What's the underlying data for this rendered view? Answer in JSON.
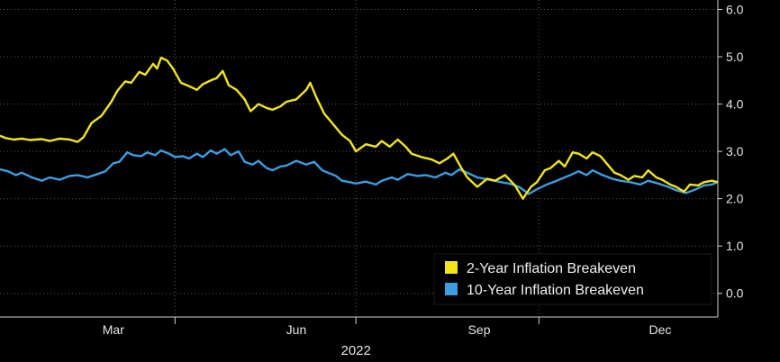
{
  "chart_data": {
    "type": "line",
    "title": "",
    "xlabel": "2022",
    "ylabel": "",
    "x_range": [
      "2022-01-03",
      "2022-12-30"
    ],
    "ylim": [
      -0.5,
      6.2
    ],
    "grid": true,
    "legend_position": "bottom-right",
    "axis_side": "right",
    "x_ticks": [
      {
        "date": "2022-03-01",
        "label": "Mar"
      },
      {
        "date": "2022-06-01",
        "label": "Jun"
      },
      {
        "date": "2022-09-01",
        "label": "Sep"
      },
      {
        "date": "2022-12-01",
        "label": "Dec"
      }
    ],
    "y_ticks": [
      {
        "value": 0,
        "label": "0.0"
      },
      {
        "value": 1,
        "label": "1.0"
      },
      {
        "value": 2,
        "label": "2.0"
      },
      {
        "value": 3,
        "label": "3.0"
      },
      {
        "value": 4,
        "label": "4.0"
      },
      {
        "value": 5,
        "label": "5.0"
      },
      {
        "value": 6,
        "label": "6.0"
      }
    ],
    "x_gridlines": [
      "2022-01-01",
      "2022-04-01",
      "2022-07-01",
      "2022-10-01"
    ],
    "series": [
      {
        "name": "2-Year Inflation Breakeven",
        "color": "#f2e619",
        "points": [
          [
            "2022-01-03",
            3.33
          ],
          [
            "2022-01-06",
            3.28
          ],
          [
            "2022-01-10",
            3.25
          ],
          [
            "2022-01-14",
            3.27
          ],
          [
            "2022-01-18",
            3.24
          ],
          [
            "2022-01-24",
            3.26
          ],
          [
            "2022-01-28",
            3.22
          ],
          [
            "2022-02-02",
            3.27
          ],
          [
            "2022-02-07",
            3.25
          ],
          [
            "2022-02-11",
            3.2
          ],
          [
            "2022-02-14",
            3.3
          ],
          [
            "2022-02-18",
            3.6
          ],
          [
            "2022-02-23",
            3.75
          ],
          [
            "2022-02-28",
            4.05
          ],
          [
            "2022-03-03",
            4.28
          ],
          [
            "2022-03-07",
            4.48
          ],
          [
            "2022-03-10",
            4.45
          ],
          [
            "2022-03-14",
            4.68
          ],
          [
            "2022-03-17",
            4.62
          ],
          [
            "2022-03-21",
            4.85
          ],
          [
            "2022-03-23",
            4.75
          ],
          [
            "2022-03-25",
            4.98
          ],
          [
            "2022-03-28",
            4.92
          ],
          [
            "2022-03-31",
            4.75
          ],
          [
            "2022-04-04",
            4.45
          ],
          [
            "2022-04-08",
            4.38
          ],
          [
            "2022-04-12",
            4.3
          ],
          [
            "2022-04-15",
            4.42
          ],
          [
            "2022-04-19",
            4.5
          ],
          [
            "2022-04-22",
            4.55
          ],
          [
            "2022-04-25",
            4.7
          ],
          [
            "2022-04-28",
            4.4
          ],
          [
            "2022-05-02",
            4.3
          ],
          [
            "2022-05-06",
            4.1
          ],
          [
            "2022-05-09",
            3.85
          ],
          [
            "2022-05-13",
            4.0
          ],
          [
            "2022-05-17",
            3.92
          ],
          [
            "2022-05-20",
            3.88
          ],
          [
            "2022-05-24",
            3.95
          ],
          [
            "2022-05-27",
            4.05
          ],
          [
            "2022-06-01",
            4.1
          ],
          [
            "2022-06-06",
            4.3
          ],
          [
            "2022-06-08",
            4.45
          ],
          [
            "2022-06-11",
            4.15
          ],
          [
            "2022-06-15",
            3.8
          ],
          [
            "2022-06-20",
            3.55
          ],
          [
            "2022-06-24",
            3.35
          ],
          [
            "2022-06-28",
            3.22
          ],
          [
            "2022-07-01",
            3.0
          ],
          [
            "2022-07-06",
            3.15
          ],
          [
            "2022-07-11",
            3.1
          ],
          [
            "2022-07-14",
            3.22
          ],
          [
            "2022-07-18",
            3.1
          ],
          [
            "2022-07-22",
            3.25
          ],
          [
            "2022-07-26",
            3.1
          ],
          [
            "2022-07-29",
            2.95
          ],
          [
            "2022-08-03",
            2.88
          ],
          [
            "2022-08-08",
            2.83
          ],
          [
            "2022-08-12",
            2.75
          ],
          [
            "2022-08-16",
            2.85
          ],
          [
            "2022-08-19",
            2.95
          ],
          [
            "2022-08-23",
            2.65
          ],
          [
            "2022-08-26",
            2.45
          ],
          [
            "2022-08-31",
            2.25
          ],
          [
            "2022-09-05",
            2.42
          ],
          [
            "2022-09-09",
            2.38
          ],
          [
            "2022-09-14",
            2.5
          ],
          [
            "2022-09-19",
            2.28
          ],
          [
            "2022-09-23",
            2.0
          ],
          [
            "2022-09-27",
            2.25
          ],
          [
            "2022-09-30",
            2.35
          ],
          [
            "2022-10-04",
            2.6
          ],
          [
            "2022-10-07",
            2.65
          ],
          [
            "2022-10-11",
            2.8
          ],
          [
            "2022-10-14",
            2.68
          ],
          [
            "2022-10-18",
            2.98
          ],
          [
            "2022-10-21",
            2.95
          ],
          [
            "2022-10-25",
            2.85
          ],
          [
            "2022-10-28",
            2.98
          ],
          [
            "2022-11-01",
            2.9
          ],
          [
            "2022-11-04",
            2.75
          ],
          [
            "2022-11-08",
            2.55
          ],
          [
            "2022-11-11",
            2.5
          ],
          [
            "2022-11-15",
            2.4
          ],
          [
            "2022-11-18",
            2.48
          ],
          [
            "2022-11-22",
            2.45
          ],
          [
            "2022-11-25",
            2.6
          ],
          [
            "2022-11-29",
            2.45
          ],
          [
            "2022-12-02",
            2.4
          ],
          [
            "2022-12-06",
            2.3
          ],
          [
            "2022-12-09",
            2.25
          ],
          [
            "2022-12-13",
            2.15
          ],
          [
            "2022-12-16",
            2.3
          ],
          [
            "2022-12-20",
            2.28
          ],
          [
            "2022-12-23",
            2.35
          ],
          [
            "2022-12-27",
            2.38
          ],
          [
            "2022-12-30",
            2.35
          ]
        ]
      },
      {
        "name": "10-Year Inflation Breakeven",
        "color": "#3d9de0",
        "points": [
          [
            "2022-01-03",
            2.62
          ],
          [
            "2022-01-07",
            2.58
          ],
          [
            "2022-01-11",
            2.5
          ],
          [
            "2022-01-14",
            2.55
          ],
          [
            "2022-01-19",
            2.45
          ],
          [
            "2022-01-24",
            2.38
          ],
          [
            "2022-01-28",
            2.45
          ],
          [
            "2022-02-02",
            2.4
          ],
          [
            "2022-02-07",
            2.48
          ],
          [
            "2022-02-11",
            2.5
          ],
          [
            "2022-02-16",
            2.45
          ],
          [
            "2022-02-21",
            2.52
          ],
          [
            "2022-02-25",
            2.58
          ],
          [
            "2022-03-01",
            2.75
          ],
          [
            "2022-03-04",
            2.78
          ],
          [
            "2022-03-08",
            2.98
          ],
          [
            "2022-03-11",
            2.92
          ],
          [
            "2022-03-15",
            2.9
          ],
          [
            "2022-03-18",
            2.98
          ],
          [
            "2022-03-22",
            2.92
          ],
          [
            "2022-03-25",
            3.02
          ],
          [
            "2022-03-29",
            2.95
          ],
          [
            "2022-04-01",
            2.88
          ],
          [
            "2022-04-05",
            2.9
          ],
          [
            "2022-04-08",
            2.85
          ],
          [
            "2022-04-12",
            2.95
          ],
          [
            "2022-04-15",
            2.88
          ],
          [
            "2022-04-19",
            3.02
          ],
          [
            "2022-04-22",
            2.95
          ],
          [
            "2022-04-26",
            3.05
          ],
          [
            "2022-04-29",
            2.92
          ],
          [
            "2022-05-03",
            3.0
          ],
          [
            "2022-05-06",
            2.78
          ],
          [
            "2022-05-10",
            2.72
          ],
          [
            "2022-05-13",
            2.8
          ],
          [
            "2022-05-17",
            2.65
          ],
          [
            "2022-05-20",
            2.6
          ],
          [
            "2022-05-24",
            2.68
          ],
          [
            "2022-05-27",
            2.7
          ],
          [
            "2022-06-01",
            2.8
          ],
          [
            "2022-06-06",
            2.72
          ],
          [
            "2022-06-10",
            2.78
          ],
          [
            "2022-06-14",
            2.6
          ],
          [
            "2022-06-17",
            2.55
          ],
          [
            "2022-06-21",
            2.48
          ],
          [
            "2022-06-24",
            2.38
          ],
          [
            "2022-06-28",
            2.35
          ],
          [
            "2022-07-01",
            2.32
          ],
          [
            "2022-07-06",
            2.36
          ],
          [
            "2022-07-11",
            2.3
          ],
          [
            "2022-07-14",
            2.38
          ],
          [
            "2022-07-19",
            2.45
          ],
          [
            "2022-07-22",
            2.4
          ],
          [
            "2022-07-27",
            2.52
          ],
          [
            "2022-08-01",
            2.48
          ],
          [
            "2022-08-05",
            2.5
          ],
          [
            "2022-08-10",
            2.45
          ],
          [
            "2022-08-15",
            2.55
          ],
          [
            "2022-08-18",
            2.5
          ],
          [
            "2022-08-22",
            2.62
          ],
          [
            "2022-08-26",
            2.55
          ],
          [
            "2022-08-31",
            2.45
          ],
          [
            "2022-09-06",
            2.4
          ],
          [
            "2022-09-12",
            2.35
          ],
          [
            "2022-09-16",
            2.32
          ],
          [
            "2022-09-21",
            2.25
          ],
          [
            "2022-09-26",
            2.1
          ],
          [
            "2022-09-30",
            2.2
          ],
          [
            "2022-10-05",
            2.3
          ],
          [
            "2022-10-10",
            2.38
          ],
          [
            "2022-10-14",
            2.45
          ],
          [
            "2022-10-18",
            2.52
          ],
          [
            "2022-10-21",
            2.58
          ],
          [
            "2022-10-25",
            2.5
          ],
          [
            "2022-10-28",
            2.6
          ],
          [
            "2022-11-02",
            2.5
          ],
          [
            "2022-11-07",
            2.42
          ],
          [
            "2022-11-11",
            2.38
          ],
          [
            "2022-11-16",
            2.35
          ],
          [
            "2022-11-21",
            2.3
          ],
          [
            "2022-11-25",
            2.38
          ],
          [
            "2022-11-30",
            2.32
          ],
          [
            "2022-12-05",
            2.25
          ],
          [
            "2022-12-09",
            2.18
          ],
          [
            "2022-12-14",
            2.12
          ],
          [
            "2022-12-19",
            2.2
          ],
          [
            "2022-12-23",
            2.28
          ],
          [
            "2022-12-27",
            2.3
          ],
          [
            "2022-12-30",
            2.35
          ]
        ]
      }
    ]
  }
}
